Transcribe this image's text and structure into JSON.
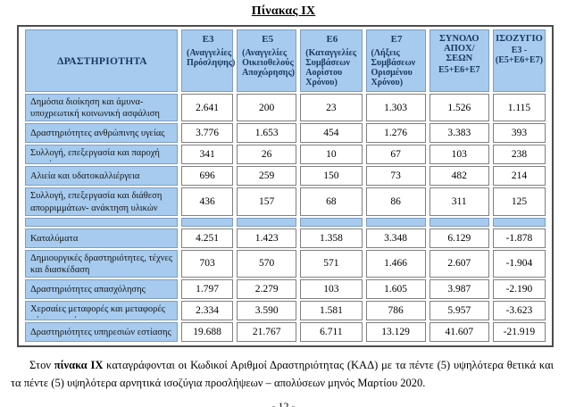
{
  "page": {
    "title": "Πίνακας IX",
    "page_number": "- 12 -"
  },
  "colors": {
    "cell_blue": "#a6cbee",
    "header_text": "#17375e",
    "frame_border": "#4d4d4d",
    "cell_border_gray": "#7f7f7f"
  },
  "table": {
    "activity_header": "ΔΡΑΣΤΗΡΙΟΤΗΤΑ",
    "columns": [
      {
        "code": "Ε3",
        "sub": "(Αναγγελίες Πρόσληψης)"
      },
      {
        "code": "Ε5",
        "sub": "(Αναγγελίες Οικειοθελούς Αποχώρησης)"
      },
      {
        "code": "Ε6",
        "sub": "(Καταγγελίες Συμβάσεων Αορίστου Χρόνου)"
      },
      {
        "code": "Ε7",
        "sub": "(Λήξεις Συμβάσεων Ορισμένου Χρόνου)"
      },
      {
        "code": "ΣΥΝΟΛΟ ΑΠΟΧ/ΣΕΩΝ",
        "sub": "Ε5+Ε6+Ε7"
      },
      {
        "code": "ΙΣΟΖΥΓΙΟ",
        "sub": "Ε3 -\n(Ε5+Ε6+Ε7)"
      }
    ],
    "rows_positive": [
      {
        "label": "Δημόσια διοίκηση και άμυνα- υποχρεωτική κοινωνική ασφάλιση",
        "values": [
          "2.641",
          "200",
          "23",
          "1.303",
          "1.526",
          "1.115"
        ]
      },
      {
        "label": "Δραστηριότητες ανθρώπινης  υγείας",
        "values": [
          "3.776",
          "1.653",
          "454",
          "1.276",
          "3.383",
          "393"
        ]
      },
      {
        "label": "Συλλογή, επεξεργασία και παροχή",
        "label_clipped": "νερού",
        "values": [
          "341",
          "26",
          "10",
          "67",
          "103",
          "238"
        ]
      },
      {
        "label": "Αλιεία και υδατοκαλλιέργεια",
        "values": [
          "696",
          "259",
          "150",
          "73",
          "482",
          "214"
        ]
      },
      {
        "label": "Συλλογή, επεξεργασία και διάθεση απορριμμάτων- ανάκτηση υλικών",
        "values": [
          "436",
          "157",
          "68",
          "86",
          "311",
          "125"
        ]
      }
    ],
    "rows_negative": [
      {
        "label": "Καταλύματα",
        "values": [
          "4.251",
          "1.423",
          "1.358",
          "3.348",
          "6.129",
          "-1.878"
        ]
      },
      {
        "label": "Δημιουργικές δραστηριότητες, τέχνες και διασκέδαση",
        "values": [
          "703",
          "570",
          "571",
          "1.466",
          "2.607",
          "-1.904"
        ]
      },
      {
        "label": "Δραστηριότητες απασχόλησης",
        "values": [
          "1.797",
          "2.279",
          "103",
          "1.605",
          "3.987",
          "-2.190"
        ]
      },
      {
        "label": "Χερσαίες μεταφορές και μεταφορές",
        "label_clipped": "μέσω αγωγών",
        "values": [
          "2.334",
          "3.590",
          "1.581",
          "786",
          "5.957",
          "-3.623"
        ]
      },
      {
        "label": "Δραστηριότητες υπηρεσιών εστίασης",
        "values": [
          "19.688",
          "21.767",
          "6.711",
          "13.129",
          "41.607",
          "-21.919"
        ]
      }
    ]
  },
  "footnote": {
    "prefix": "Στον ",
    "bold": "πίνακα IX",
    "suffix": " καταγράφονται οι Κωδικοί Αριθμοί Δραστηριότητας (ΚΑΔ) με τα πέντε (5) υψηλότερα θετικά και τα πέντε (5) υψηλότερα αρνητικά ισοζύγια προσλήψεων – απολύσεων μηνός Μαρτίου 2020."
  }
}
